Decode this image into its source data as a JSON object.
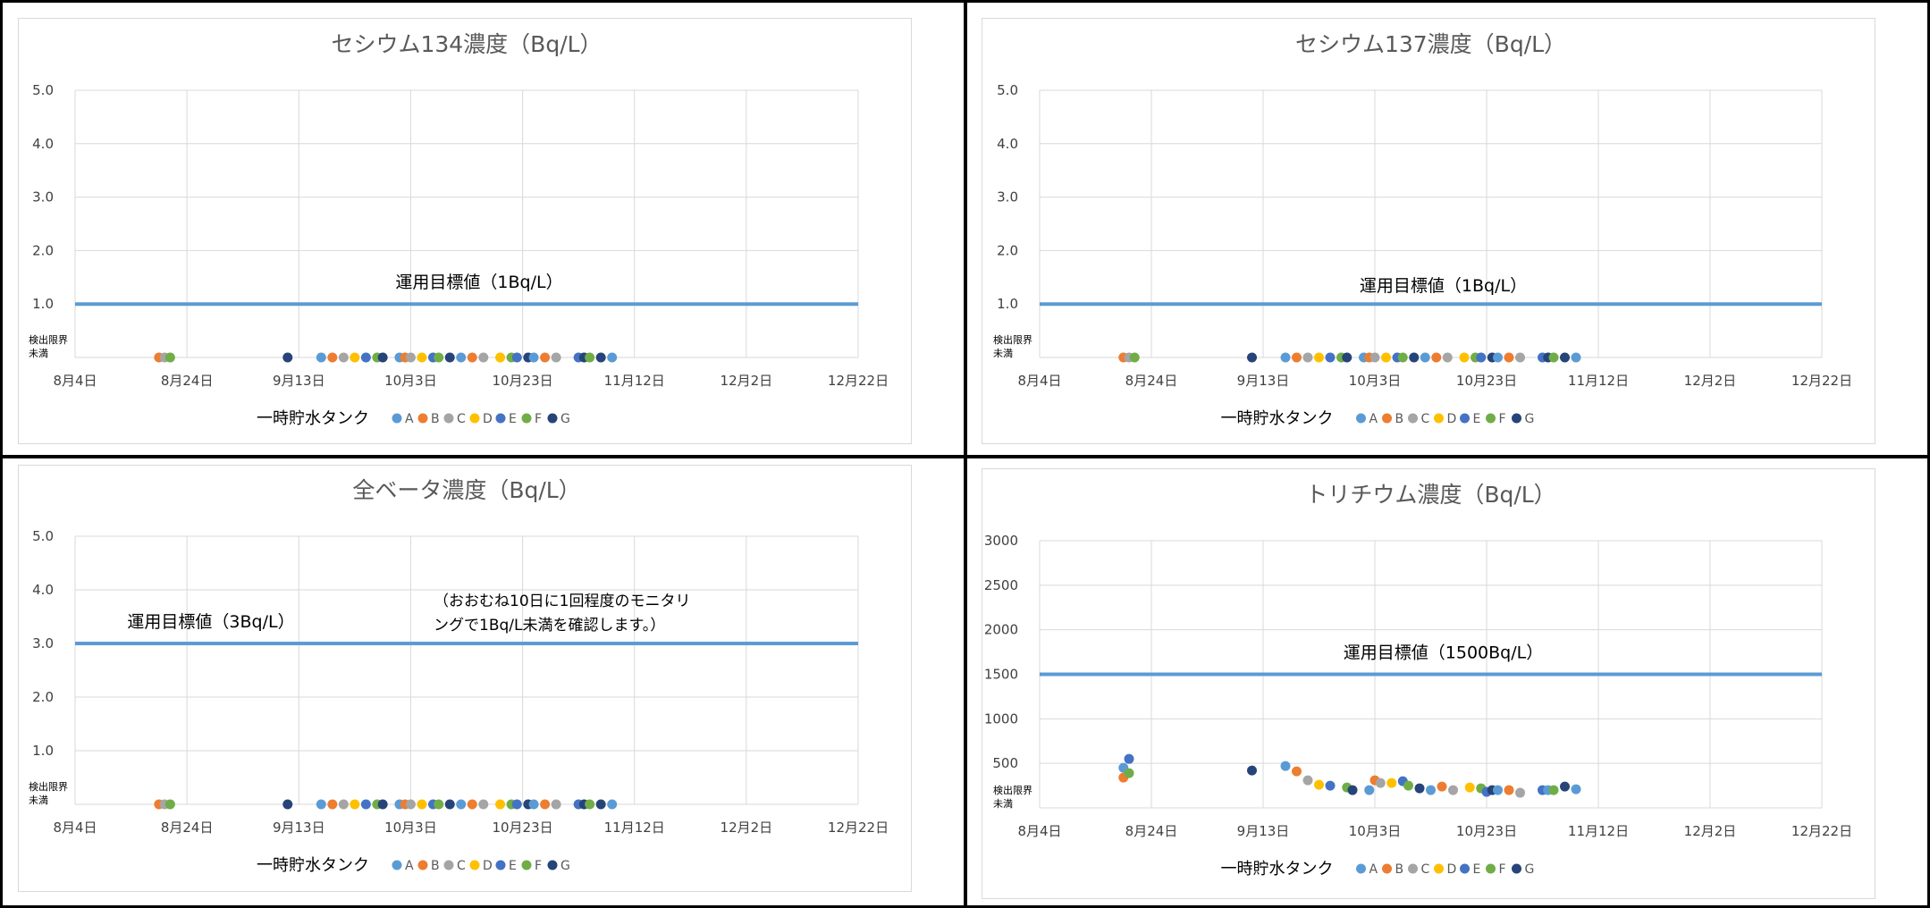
{
  "colors": {
    "target_line": "#5b9bd5",
    "grid": "#d9d9d9",
    "text": "#595959",
    "series": {
      "A": "#5b9bd5",
      "B": "#ed7d31",
      "C": "#a5a5a5",
      "D": "#ffc000",
      "E": "#4472c4",
      "F": "#70ad47",
      "G": "#264478"
    }
  },
  "legend_title": "一時貯水タンク",
  "series_names": [
    "A",
    "B",
    "C",
    "D",
    "E",
    "F",
    "G"
  ],
  "x_ticks": [
    "8月4日",
    "8月24日",
    "9月13日",
    "10月3日",
    "10月23日",
    "11月12日",
    "12月2日",
    "12月22日"
  ],
  "below_label": [
    "検出限界",
    "未満"
  ],
  "chart_data": [
    {
      "type": "scatter",
      "title": "セシウム134濃度（Bq/L）",
      "ylim": [
        0,
        5
      ],
      "y_ticks": [
        "5.0",
        "4.0",
        "3.0",
        "2.0",
        "1.0"
      ],
      "target": {
        "value": 1,
        "label": "運用目標値（1Bq/L）"
      },
      "note": "",
      "points": [
        {
          "s": "B",
          "x": "8月19日",
          "y": 0
        },
        {
          "s": "C",
          "x": "8月20日",
          "y": 0
        },
        {
          "s": "F",
          "x": "8月21日",
          "y": 0
        },
        {
          "s": "G",
          "x": "9月11日",
          "y": 0
        },
        {
          "s": "A",
          "x": "9月17日",
          "y": 0
        },
        {
          "s": "B",
          "x": "9月19日",
          "y": 0
        },
        {
          "s": "C",
          "x": "9月21日",
          "y": 0
        },
        {
          "s": "D",
          "x": "9月23日",
          "y": 0
        },
        {
          "s": "E",
          "x": "9月25日",
          "y": 0
        },
        {
          "s": "F",
          "x": "9月27日",
          "y": 0
        },
        {
          "s": "G",
          "x": "9月28日",
          "y": 0
        },
        {
          "s": "A",
          "x": "10月1日",
          "y": 0
        },
        {
          "s": "B",
          "x": "10月2日",
          "y": 0
        },
        {
          "s": "C",
          "x": "10月3日",
          "y": 0
        },
        {
          "s": "D",
          "x": "10月5日",
          "y": 0
        },
        {
          "s": "E",
          "x": "10月7日",
          "y": 0
        },
        {
          "s": "F",
          "x": "10月8日",
          "y": 0
        },
        {
          "s": "G",
          "x": "10月10日",
          "y": 0
        },
        {
          "s": "A",
          "x": "10月12日",
          "y": 0
        },
        {
          "s": "B",
          "x": "10月14日",
          "y": 0
        },
        {
          "s": "C",
          "x": "10月16日",
          "y": 0
        },
        {
          "s": "D",
          "x": "10月19日",
          "y": 0
        },
        {
          "s": "F",
          "x": "10月21日",
          "y": 0
        },
        {
          "s": "E",
          "x": "10月22日",
          "y": 0
        },
        {
          "s": "G",
          "x": "10月24日",
          "y": 0
        },
        {
          "s": "A",
          "x": "10月25日",
          "y": 0
        },
        {
          "s": "B",
          "x": "10月27日",
          "y": 0
        },
        {
          "s": "C",
          "x": "10月29日",
          "y": 0
        },
        {
          "s": "E",
          "x": "11月2日",
          "y": 0
        },
        {
          "s": "G",
          "x": "11月3日",
          "y": 0
        },
        {
          "s": "F",
          "x": "11月4日",
          "y": 0
        },
        {
          "s": "G",
          "x": "11月6日",
          "y": 0
        },
        {
          "s": "A",
          "x": "11月8日",
          "y": 0
        }
      ]
    },
    {
      "type": "scatter",
      "title": "セシウム137濃度（Bq/L）",
      "ylim": [
        0,
        5
      ],
      "y_ticks": [
        "5.0",
        "4.0",
        "3.0",
        "2.0",
        "1.0"
      ],
      "target": {
        "value": 1,
        "label": "運用目標値（1Bq/L）"
      },
      "note": "",
      "points": [
        {
          "s": "B",
          "x": "8月19日",
          "y": 0
        },
        {
          "s": "C",
          "x": "8月20日",
          "y": 0
        },
        {
          "s": "F",
          "x": "8月21日",
          "y": 0
        },
        {
          "s": "G",
          "x": "9月11日",
          "y": 0
        },
        {
          "s": "A",
          "x": "9月17日",
          "y": 0
        },
        {
          "s": "B",
          "x": "9月19日",
          "y": 0
        },
        {
          "s": "C",
          "x": "9月21日",
          "y": 0
        },
        {
          "s": "D",
          "x": "9月23日",
          "y": 0
        },
        {
          "s": "E",
          "x": "9月25日",
          "y": 0
        },
        {
          "s": "F",
          "x": "9月27日",
          "y": 0
        },
        {
          "s": "G",
          "x": "9月28日",
          "y": 0
        },
        {
          "s": "A",
          "x": "10月1日",
          "y": 0
        },
        {
          "s": "B",
          "x": "10月2日",
          "y": 0
        },
        {
          "s": "C",
          "x": "10月3日",
          "y": 0
        },
        {
          "s": "D",
          "x": "10月5日",
          "y": 0
        },
        {
          "s": "E",
          "x": "10月7日",
          "y": 0
        },
        {
          "s": "F",
          "x": "10月8日",
          "y": 0
        },
        {
          "s": "G",
          "x": "10月10日",
          "y": 0
        },
        {
          "s": "A",
          "x": "10月12日",
          "y": 0
        },
        {
          "s": "B",
          "x": "10月14日",
          "y": 0
        },
        {
          "s": "C",
          "x": "10月16日",
          "y": 0
        },
        {
          "s": "D",
          "x": "10月19日",
          "y": 0
        },
        {
          "s": "F",
          "x": "10月21日",
          "y": 0
        },
        {
          "s": "E",
          "x": "10月22日",
          "y": 0
        },
        {
          "s": "G",
          "x": "10月24日",
          "y": 0
        },
        {
          "s": "A",
          "x": "10月25日",
          "y": 0
        },
        {
          "s": "B",
          "x": "10月27日",
          "y": 0
        },
        {
          "s": "C",
          "x": "10月29日",
          "y": 0
        },
        {
          "s": "E",
          "x": "11月2日",
          "y": 0
        },
        {
          "s": "G",
          "x": "11月3日",
          "y": 0
        },
        {
          "s": "F",
          "x": "11月4日",
          "y": 0
        },
        {
          "s": "G",
          "x": "11月6日",
          "y": 0
        },
        {
          "s": "A",
          "x": "11月8日",
          "y": 0
        }
      ]
    },
    {
      "type": "scatter",
      "title": "全ベータ濃度（Bq/L）",
      "ylim": [
        0,
        5
      ],
      "y_ticks": [
        "5.0",
        "4.0",
        "3.0",
        "2.0",
        "1.0"
      ],
      "target": {
        "value": 3,
        "label": "運用目標値（3Bq/L）"
      },
      "note": [
        "（おおむね10日に1回程度のモニタリ",
        "ングで1Bq/L未満を確認します。）"
      ],
      "points": [
        {
          "s": "B",
          "x": "8月19日",
          "y": 0
        },
        {
          "s": "C",
          "x": "8月20日",
          "y": 0
        },
        {
          "s": "F",
          "x": "8月21日",
          "y": 0
        },
        {
          "s": "G",
          "x": "9月11日",
          "y": 0
        },
        {
          "s": "A",
          "x": "9月17日",
          "y": 0
        },
        {
          "s": "B",
          "x": "9月19日",
          "y": 0
        },
        {
          "s": "C",
          "x": "9月21日",
          "y": 0
        },
        {
          "s": "D",
          "x": "9月23日",
          "y": 0
        },
        {
          "s": "E",
          "x": "9月25日",
          "y": 0
        },
        {
          "s": "F",
          "x": "9月27日",
          "y": 0
        },
        {
          "s": "G",
          "x": "9月28日",
          "y": 0
        },
        {
          "s": "A",
          "x": "10月1日",
          "y": 0
        },
        {
          "s": "B",
          "x": "10月2日",
          "y": 0
        },
        {
          "s": "C",
          "x": "10月3日",
          "y": 0
        },
        {
          "s": "D",
          "x": "10月5日",
          "y": 0
        },
        {
          "s": "E",
          "x": "10月7日",
          "y": 0
        },
        {
          "s": "F",
          "x": "10月8日",
          "y": 0
        },
        {
          "s": "G",
          "x": "10月10日",
          "y": 0
        },
        {
          "s": "A",
          "x": "10月12日",
          "y": 0
        },
        {
          "s": "B",
          "x": "10月14日",
          "y": 0
        },
        {
          "s": "C",
          "x": "10月16日",
          "y": 0
        },
        {
          "s": "D",
          "x": "10月19日",
          "y": 0
        },
        {
          "s": "F",
          "x": "10月21日",
          "y": 0
        },
        {
          "s": "E",
          "x": "10月22日",
          "y": 0
        },
        {
          "s": "G",
          "x": "10月24日",
          "y": 0
        },
        {
          "s": "A",
          "x": "10月25日",
          "y": 0
        },
        {
          "s": "B",
          "x": "10月27日",
          "y": 0
        },
        {
          "s": "C",
          "x": "10月29日",
          "y": 0
        },
        {
          "s": "E",
          "x": "11月2日",
          "y": 0
        },
        {
          "s": "G",
          "x": "11月3日",
          "y": 0
        },
        {
          "s": "F",
          "x": "11月4日",
          "y": 0
        },
        {
          "s": "G",
          "x": "11月6日",
          "y": 0
        },
        {
          "s": "A",
          "x": "11月8日",
          "y": 0
        }
      ]
    },
    {
      "type": "scatter",
      "title": "トリチウム濃度（Bq/L）",
      "ylim": [
        0,
        3000
      ],
      "y_ticks": [
        "3000",
        "2500",
        "2000",
        "1500",
        "1000",
        "500"
      ],
      "target": {
        "value": 1500,
        "label": "運用目標値（1500Bq/L）"
      },
      "note": "",
      "points": [
        {
          "s": "B",
          "x": "8月19日",
          "y": 340
        },
        {
          "s": "A",
          "x": "8月19日",
          "y": 450
        },
        {
          "s": "E",
          "x": "8月20日",
          "y": 550
        },
        {
          "s": "F",
          "x": "8月20日",
          "y": 390
        },
        {
          "s": "G",
          "x": "9月11日",
          "y": 420
        },
        {
          "s": "A",
          "x": "9月17日",
          "y": 470
        },
        {
          "s": "B",
          "x": "9月19日",
          "y": 410
        },
        {
          "s": "C",
          "x": "9月21日",
          "y": 310
        },
        {
          "s": "D",
          "x": "9月23日",
          "y": 260
        },
        {
          "s": "E",
          "x": "9月25日",
          "y": 250
        },
        {
          "s": "F",
          "x": "9月28日",
          "y": 230
        },
        {
          "s": "G",
          "x": "9月29日",
          "y": 200
        },
        {
          "s": "A",
          "x": "10月2日",
          "y": 200
        },
        {
          "s": "B",
          "x": "10月3日",
          "y": 310
        },
        {
          "s": "C",
          "x": "10月4日",
          "y": 280
        },
        {
          "s": "D",
          "x": "10月6日",
          "y": 280
        },
        {
          "s": "E",
          "x": "10月8日",
          "y": 300
        },
        {
          "s": "F",
          "x": "10月9日",
          "y": 250
        },
        {
          "s": "G",
          "x": "10月11日",
          "y": 220
        },
        {
          "s": "A",
          "x": "10月13日",
          "y": 200
        },
        {
          "s": "B",
          "x": "10月15日",
          "y": 240
        },
        {
          "s": "C",
          "x": "10月17日",
          "y": 200
        },
        {
          "s": "D",
          "x": "10月20日",
          "y": 230
        },
        {
          "s": "F",
          "x": "10月22日",
          "y": 220
        },
        {
          "s": "E",
          "x": "10月23日",
          "y": 180
        },
        {
          "s": "G",
          "x": "10月24日",
          "y": 200
        },
        {
          "s": "A",
          "x": "10月25日",
          "y": 200
        },
        {
          "s": "B",
          "x": "10月27日",
          "y": 200
        },
        {
          "s": "C",
          "x": "10月29日",
          "y": 170
        },
        {
          "s": "E",
          "x": "11月2日",
          "y": 200
        },
        {
          "s": "A",
          "x": "11月3日",
          "y": 200
        },
        {
          "s": "F",
          "x": "11月4日",
          "y": 200
        },
        {
          "s": "G",
          "x": "11月6日",
          "y": 240
        },
        {
          "s": "A",
          "x": "11月8日",
          "y": 210
        }
      ]
    }
  ]
}
